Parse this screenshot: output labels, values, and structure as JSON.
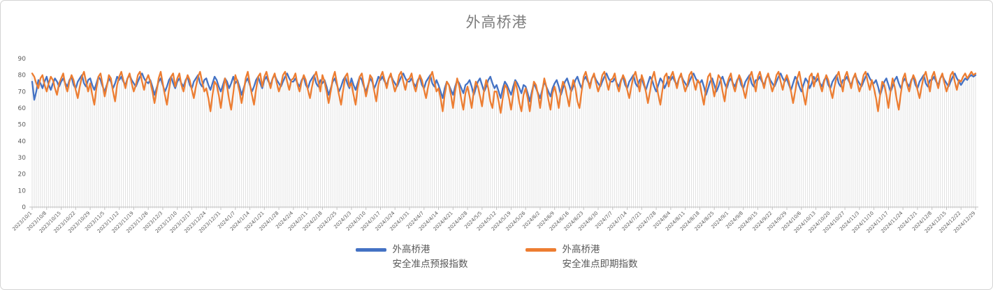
{
  "chart_title": "外高桥港",
  "legend": {
    "items": [
      {
        "name_line1": "外高桥港",
        "name_line2": "安全准点预报指数",
        "color": "#4472C4"
      },
      {
        "name_line1": "外高桥港",
        "name_line2": "安全准点即期指数",
        "color": "#ED7D31"
      }
    ]
  },
  "axis_style": {
    "label_color": "#595959",
    "axis_line_color": "#bfbfbf",
    "dropline_color": "#d9d9d9",
    "title_color": "#7d7d7d"
  },
  "chart_data": {
    "type": "line",
    "title": "外高桥港",
    "xlabel": "",
    "ylabel": "",
    "ylim": [
      0,
      90
    ],
    "y_ticks": [
      0,
      10,
      20,
      30,
      40,
      50,
      60,
      70,
      80,
      90
    ],
    "grid": "vertical drop lines, one per daily data point",
    "legend_position": "bottom",
    "x_start_date": "2023/10/1",
    "x_end_date": "2024/12/29",
    "x_frequency": "daily",
    "x_tick_interval_days": 7,
    "x_tick_labels": [
      "2023/10/1",
      "2023/10/8",
      "2023/10/15",
      "2023/10/22",
      "2023/10/29",
      "2023/11/5",
      "2023/11/12",
      "2023/11/19",
      "2023/11/26",
      "2023/12/3",
      "2023/12/10",
      "2023/12/17",
      "2023/12/24",
      "2023/12/31",
      "2024/1/7",
      "2024/1/14",
      "2024/1/21",
      "2024/1/28",
      "2024/2/4",
      "2024/2/11",
      "2024/2/18",
      "2024/2/25",
      "2024/3/3",
      "2024/3/10",
      "2024/3/17",
      "2024/3/24",
      "2024/3/31",
      "2024/4/7",
      "2024/4/14",
      "2024/4/21",
      "2024/4/28",
      "2024/5/5",
      "2024/5/12",
      "2024/5/19",
      "2024/5/26",
      "2024/6/2",
      "2024/6/9",
      "2024/6/16",
      "2024/6/23",
      "2024/6/30",
      "2024/7/7",
      "2024/7/14",
      "2024/7/21",
      "2024/7/28",
      "2024/8/4",
      "2024/8/11",
      "2024/8/18",
      "2024/8/25",
      "2024/9/1",
      "2024/9/8",
      "2024/9/15",
      "2024/9/22",
      "2024/9/29",
      "2024/10/6",
      "2024/10/13",
      "2024/10/20",
      "2024/10/27",
      "2024/11/3",
      "2024/11/10",
      "2024/11/17",
      "2024/11/24",
      "2024/12/1",
      "2024/12/8",
      "2024/12/15",
      "2024/12/22",
      "2024/12/29"
    ],
    "series": [
      {
        "name": "外高桥港 安全准点预报指数",
        "color": "#4472C4",
        "values": [
          76,
          65,
          70,
          77,
          75,
          72,
          76,
          79,
          74,
          71,
          75,
          78,
          76,
          73,
          76,
          78,
          75,
          73,
          77,
          79,
          74,
          72,
          76,
          78,
          80,
          75,
          73,
          77,
          78,
          74,
          71,
          75,
          79,
          77,
          73,
          70,
          74,
          78,
          76,
          72,
          75,
          79,
          77,
          79,
          76,
          74,
          78,
          80,
          77,
          75,
          73,
          76,
          79,
          81,
          78,
          76,
          75,
          77,
          73,
          68,
          72,
          76,
          78,
          74,
          70,
          73,
          77,
          79,
          75,
          72,
          76,
          78,
          75,
          73,
          77,
          79,
          74,
          72,
          76,
          78,
          80,
          75,
          73,
          77,
          78,
          74,
          71,
          75,
          79,
          77,
          73,
          70,
          74,
          78,
          76,
          72,
          75,
          79,
          75,
          77,
          73,
          68,
          72,
          76,
          78,
          74,
          70,
          73,
          77,
          79,
          75,
          72,
          77,
          79,
          76,
          74,
          78,
          80,
          77,
          75,
          73,
          76,
          79,
          81,
          78,
          76,
          76,
          78,
          75,
          73,
          77,
          79,
          74,
          72,
          76,
          78,
          80,
          75,
          73,
          77,
          75,
          77,
          73,
          68,
          72,
          76,
          78,
          74,
          70,
          73,
          77,
          79,
          75,
          72,
          78,
          74,
          71,
          75,
          79,
          77,
          73,
          70,
          74,
          78,
          76,
          72,
          75,
          79,
          77,
          79,
          76,
          74,
          78,
          80,
          77,
          75,
          73,
          76,
          79,
          81,
          78,
          76,
          76,
          78,
          75,
          73,
          77,
          79,
          74,
          72,
          76,
          78,
          80,
          75,
          73,
          77,
          74,
          70,
          66,
          72,
          76,
          74,
          71,
          68,
          73,
          77,
          75,
          72,
          69,
          74,
          75,
          77,
          73,
          68,
          72,
          76,
          78,
          74,
          70,
          73,
          77,
          79,
          75,
          72,
          74,
          70,
          66,
          72,
          76,
          74,
          71,
          68,
          73,
          77,
          75,
          72,
          69,
          74,
          73,
          69,
          64,
          70,
          75,
          72,
          69,
          66,
          71,
          76,
          73,
          70,
          67,
          72,
          75,
          77,
          73,
          68,
          72,
          76,
          78,
          74,
          70,
          73,
          77,
          79,
          75,
          72,
          77,
          79,
          76,
          74,
          78,
          80,
          77,
          75,
          73,
          76,
          79,
          81,
          78,
          76,
          76,
          78,
          75,
          73,
          77,
          79,
          74,
          72,
          76,
          78,
          80,
          75,
          73,
          77,
          78,
          74,
          71,
          75,
          79,
          77,
          73,
          70,
          74,
          78,
          76,
          72,
          75,
          79,
          77,
          79,
          76,
          74,
          78,
          80,
          77,
          75,
          73,
          76,
          79,
          81,
          78,
          76,
          75,
          77,
          73,
          68,
          72,
          76,
          78,
          74,
          70,
          73,
          77,
          79,
          75,
          72,
          76,
          78,
          75,
          73,
          77,
          79,
          74,
          72,
          76,
          78,
          80,
          75,
          73,
          77,
          77,
          79,
          76,
          74,
          78,
          80,
          77,
          75,
          73,
          76,
          79,
          81,
          78,
          76,
          78,
          74,
          71,
          75,
          79,
          77,
          73,
          70,
          74,
          78,
          76,
          72,
          75,
          79,
          76,
          78,
          75,
          73,
          77,
          79,
          74,
          72,
          76,
          78,
          80,
          75,
          73,
          77,
          77,
          79,
          76,
          74,
          78,
          80,
          77,
          75,
          73,
          76,
          79,
          81,
          78,
          76,
          75,
          77,
          73,
          68,
          72,
          76,
          78,
          74,
          70,
          73,
          77,
          79,
          75,
          72,
          76,
          78,
          75,
          73,
          77,
          79,
          74,
          72,
          76,
          78,
          80,
          75,
          73,
          77,
          77,
          79,
          76,
          74,
          78,
          80,
          77,
          75,
          73,
          76,
          79,
          81,
          78,
          76,
          74,
          76,
          78,
          77,
          79,
          80,
          79,
          80
        ]
      },
      {
        "name": "外高桥港 安全准点即期指数",
        "color": "#ED7D31",
        "values": [
          81,
          79,
          75,
          72,
          78,
          80,
          74,
          70,
          75,
          79,
          77,
          72,
          68,
          75,
          78,
          81,
          74,
          70,
          76,
          80,
          77,
          71,
          66,
          73,
          79,
          82,
          76,
          70,
          75,
          68,
          62,
          72,
          79,
          81,
          74,
          67,
          73,
          80,
          78,
          70,
          64,
          74,
          79,
          82,
          77,
          72,
          78,
          81,
          75,
          70,
          74,
          80,
          82,
          76,
          71,
          77,
          80,
          76,
          70,
          63,
          70,
          78,
          82,
          75,
          68,
          62,
          71,
          79,
          81,
          73,
          78,
          81,
          74,
          70,
          76,
          80,
          77,
          71,
          66,
          73,
          79,
          82,
          76,
          70,
          72,
          66,
          58,
          68,
          76,
          74,
          68,
          60,
          70,
          78,
          73,
          65,
          59,
          69,
          80,
          76,
          70,
          63,
          70,
          78,
          82,
          75,
          68,
          62,
          71,
          79,
          81,
          73,
          79,
          82,
          77,
          72,
          78,
          81,
          75,
          70,
          74,
          80,
          82,
          76,
          71,
          77,
          78,
          81,
          74,
          70,
          76,
          80,
          77,
          71,
          66,
          73,
          79,
          82,
          76,
          70,
          80,
          76,
          70,
          63,
          70,
          78,
          82,
          75,
          68,
          62,
          71,
          79,
          81,
          73,
          75,
          68,
          62,
          72,
          79,
          81,
          74,
          67,
          73,
          80,
          78,
          70,
          64,
          74,
          79,
          82,
          77,
          72,
          78,
          81,
          75,
          70,
          74,
          80,
          82,
          76,
          71,
          77,
          78,
          81,
          74,
          70,
          76,
          80,
          77,
          71,
          66,
          73,
          79,
          82,
          76,
          70,
          72,
          66,
          58,
          68,
          76,
          74,
          68,
          60,
          70,
          78,
          73,
          65,
          59,
          69,
          73,
          67,
          60,
          70,
          76,
          73,
          67,
          61,
          71,
          77,
          72,
          64,
          60,
          70,
          70,
          64,
          57,
          66,
          74,
          72,
          66,
          59,
          68,
          76,
          71,
          63,
          58,
          68,
          72,
          66,
          58,
          68,
          76,
          74,
          68,
          60,
          70,
          78,
          73,
          65,
          59,
          69,
          73,
          67,
          60,
          70,
          76,
          73,
          67,
          61,
          71,
          77,
          72,
          64,
          60,
          70,
          79,
          82,
          77,
          72,
          78,
          81,
          75,
          70,
          74,
          80,
          82,
          76,
          71,
          77,
          78,
          81,
          74,
          70,
          76,
          80,
          77,
          71,
          66,
          73,
          79,
          82,
          76,
          70,
          80,
          76,
          70,
          63,
          70,
          78,
          82,
          75,
          68,
          62,
          71,
          79,
          81,
          73,
          79,
          82,
          77,
          72,
          78,
          81,
          75,
          70,
          74,
          80,
          82,
          76,
          71,
          77,
          75,
          68,
          62,
          72,
          79,
          81,
          74,
          67,
          73,
          80,
          78,
          70,
          64,
          74,
          78,
          81,
          74,
          70,
          76,
          80,
          77,
          71,
          66,
          73,
          79,
          82,
          76,
          70,
          79,
          82,
          77,
          72,
          78,
          81,
          75,
          70,
          74,
          80,
          82,
          76,
          71,
          77,
          80,
          76,
          70,
          63,
          70,
          78,
          82,
          75,
          68,
          62,
          71,
          79,
          81,
          73,
          78,
          81,
          74,
          70,
          76,
          80,
          77,
          71,
          66,
          73,
          79,
          82,
          76,
          70,
          79,
          82,
          77,
          72,
          78,
          81,
          75,
          70,
          74,
          80,
          82,
          76,
          71,
          77,
          72,
          66,
          58,
          68,
          76,
          74,
          68,
          60,
          70,
          78,
          73,
          65,
          59,
          69,
          78,
          81,
          74,
          70,
          76,
          80,
          77,
          71,
          66,
          73,
          79,
          82,
          76,
          70,
          79,
          82,
          77,
          72,
          78,
          81,
          75,
          70,
          74,
          80,
          82,
          76,
          71,
          77,
          76,
          79,
          81,
          78,
          80,
          82,
          80,
          81
        ]
      }
    ]
  }
}
